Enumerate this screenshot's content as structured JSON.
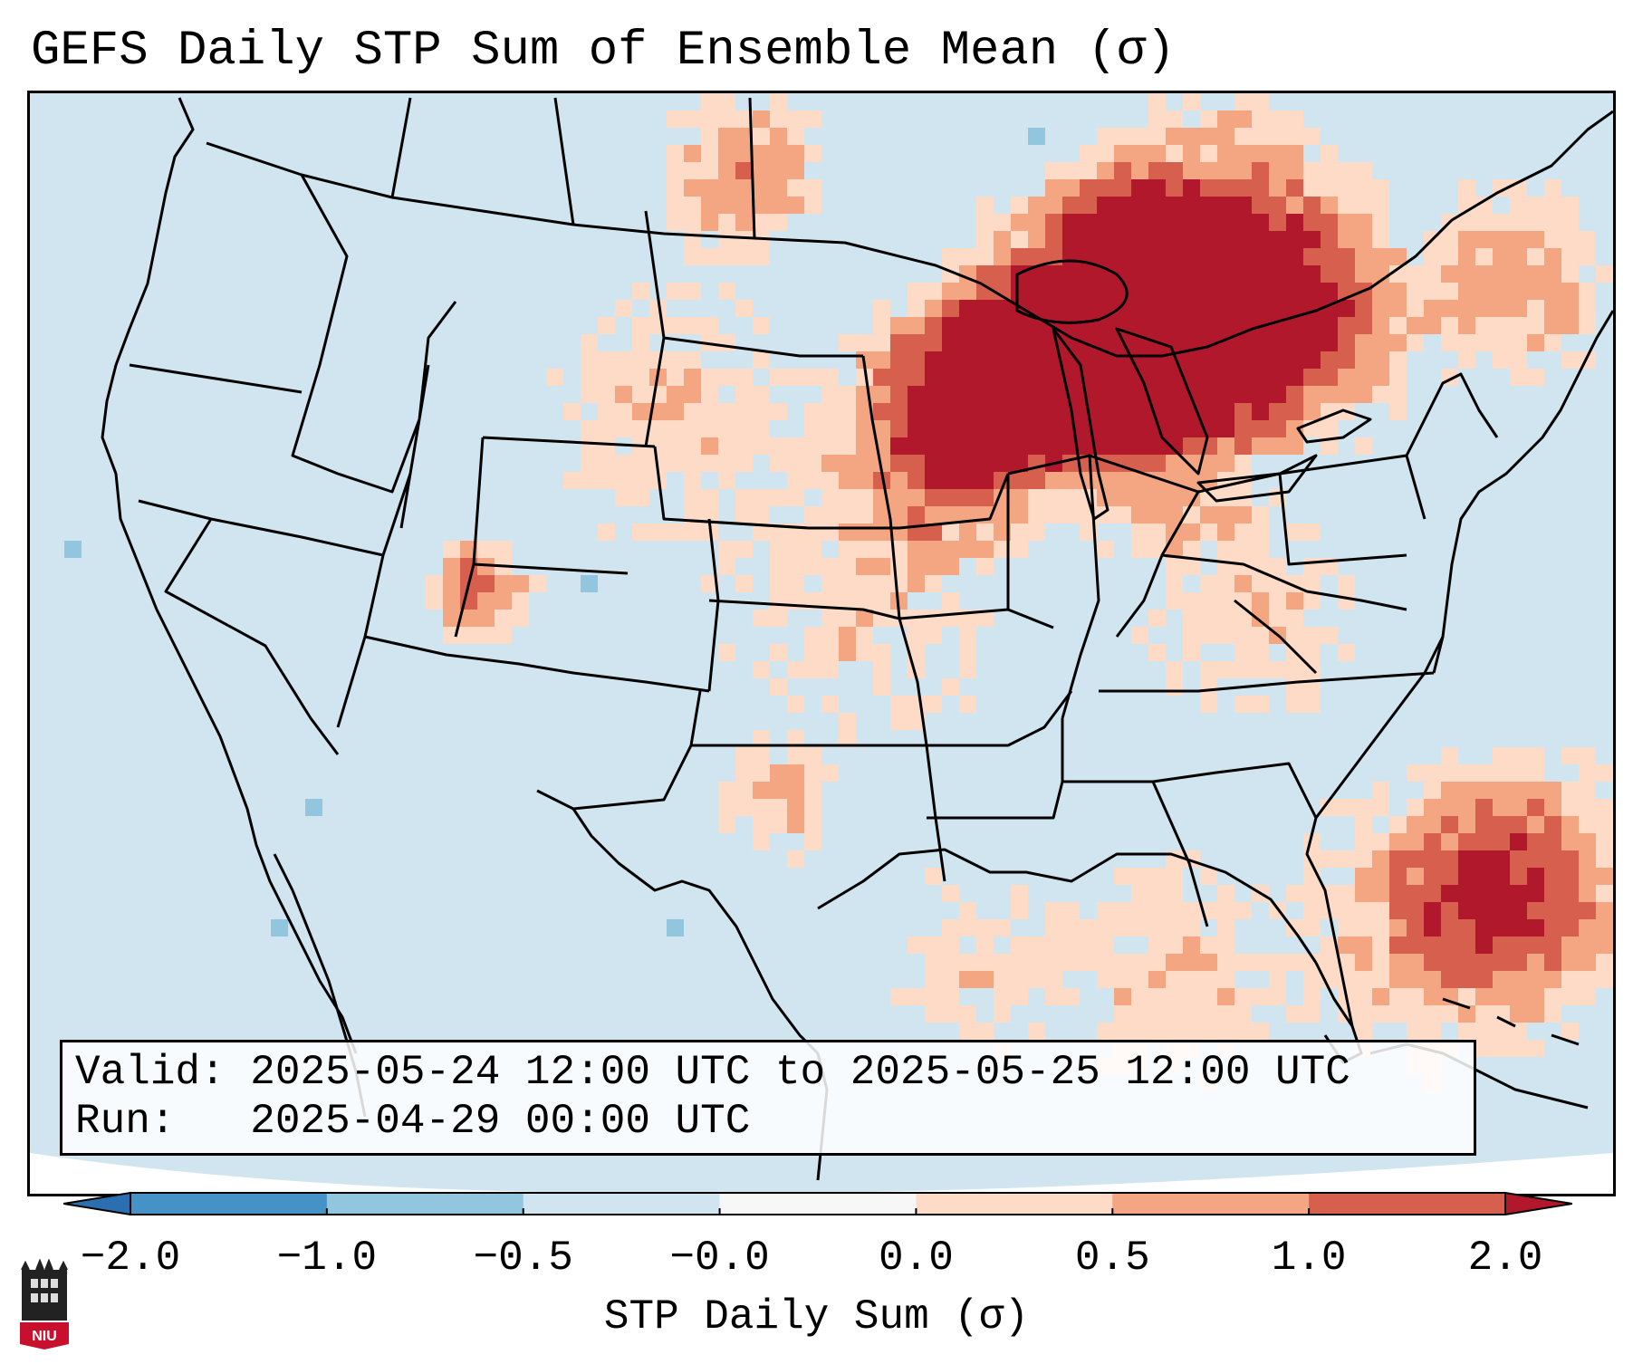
{
  "title": "GEFS Daily STP Sum of Ensemble Mean (σ)",
  "info": {
    "valid_label": "Valid:",
    "valid_value": "2025-05-24 12:00 UTC to 2025-05-25 12:00 UTC",
    "run_label": "Run:",
    "run_value": "2025-04-29 00:00 UTC"
  },
  "colorbar": {
    "label": "STP Daily Sum (σ)",
    "tick_labels": [
      "−2.0",
      "−1.0",
      "−0.5",
      "−0.0",
      "0.0",
      "0.5",
      "1.0",
      "2.0"
    ],
    "colors": {
      "below_min": "#2c6fb0",
      "neg_2_to_1": "#4592c6",
      "neg_1_to_05": "#92c5de",
      "neg_05_to_0": "#d1e5f0",
      "neg0_to_0": "#f7f7f7",
      "pos_0_to_05": "#fddbc7",
      "pos_05_to_1": "#f4a582",
      "pos_1_to_2": "#d6604d",
      "above_max": "#b2182b"
    }
  },
  "map": {
    "projection": "Lambert Conformal, contiguous United States",
    "background_value_color": "#d1e5f0",
    "outside_domain_color": "#ffffff"
  },
  "logo": {
    "text": "NIU",
    "color": "#c8102e"
  }
}
